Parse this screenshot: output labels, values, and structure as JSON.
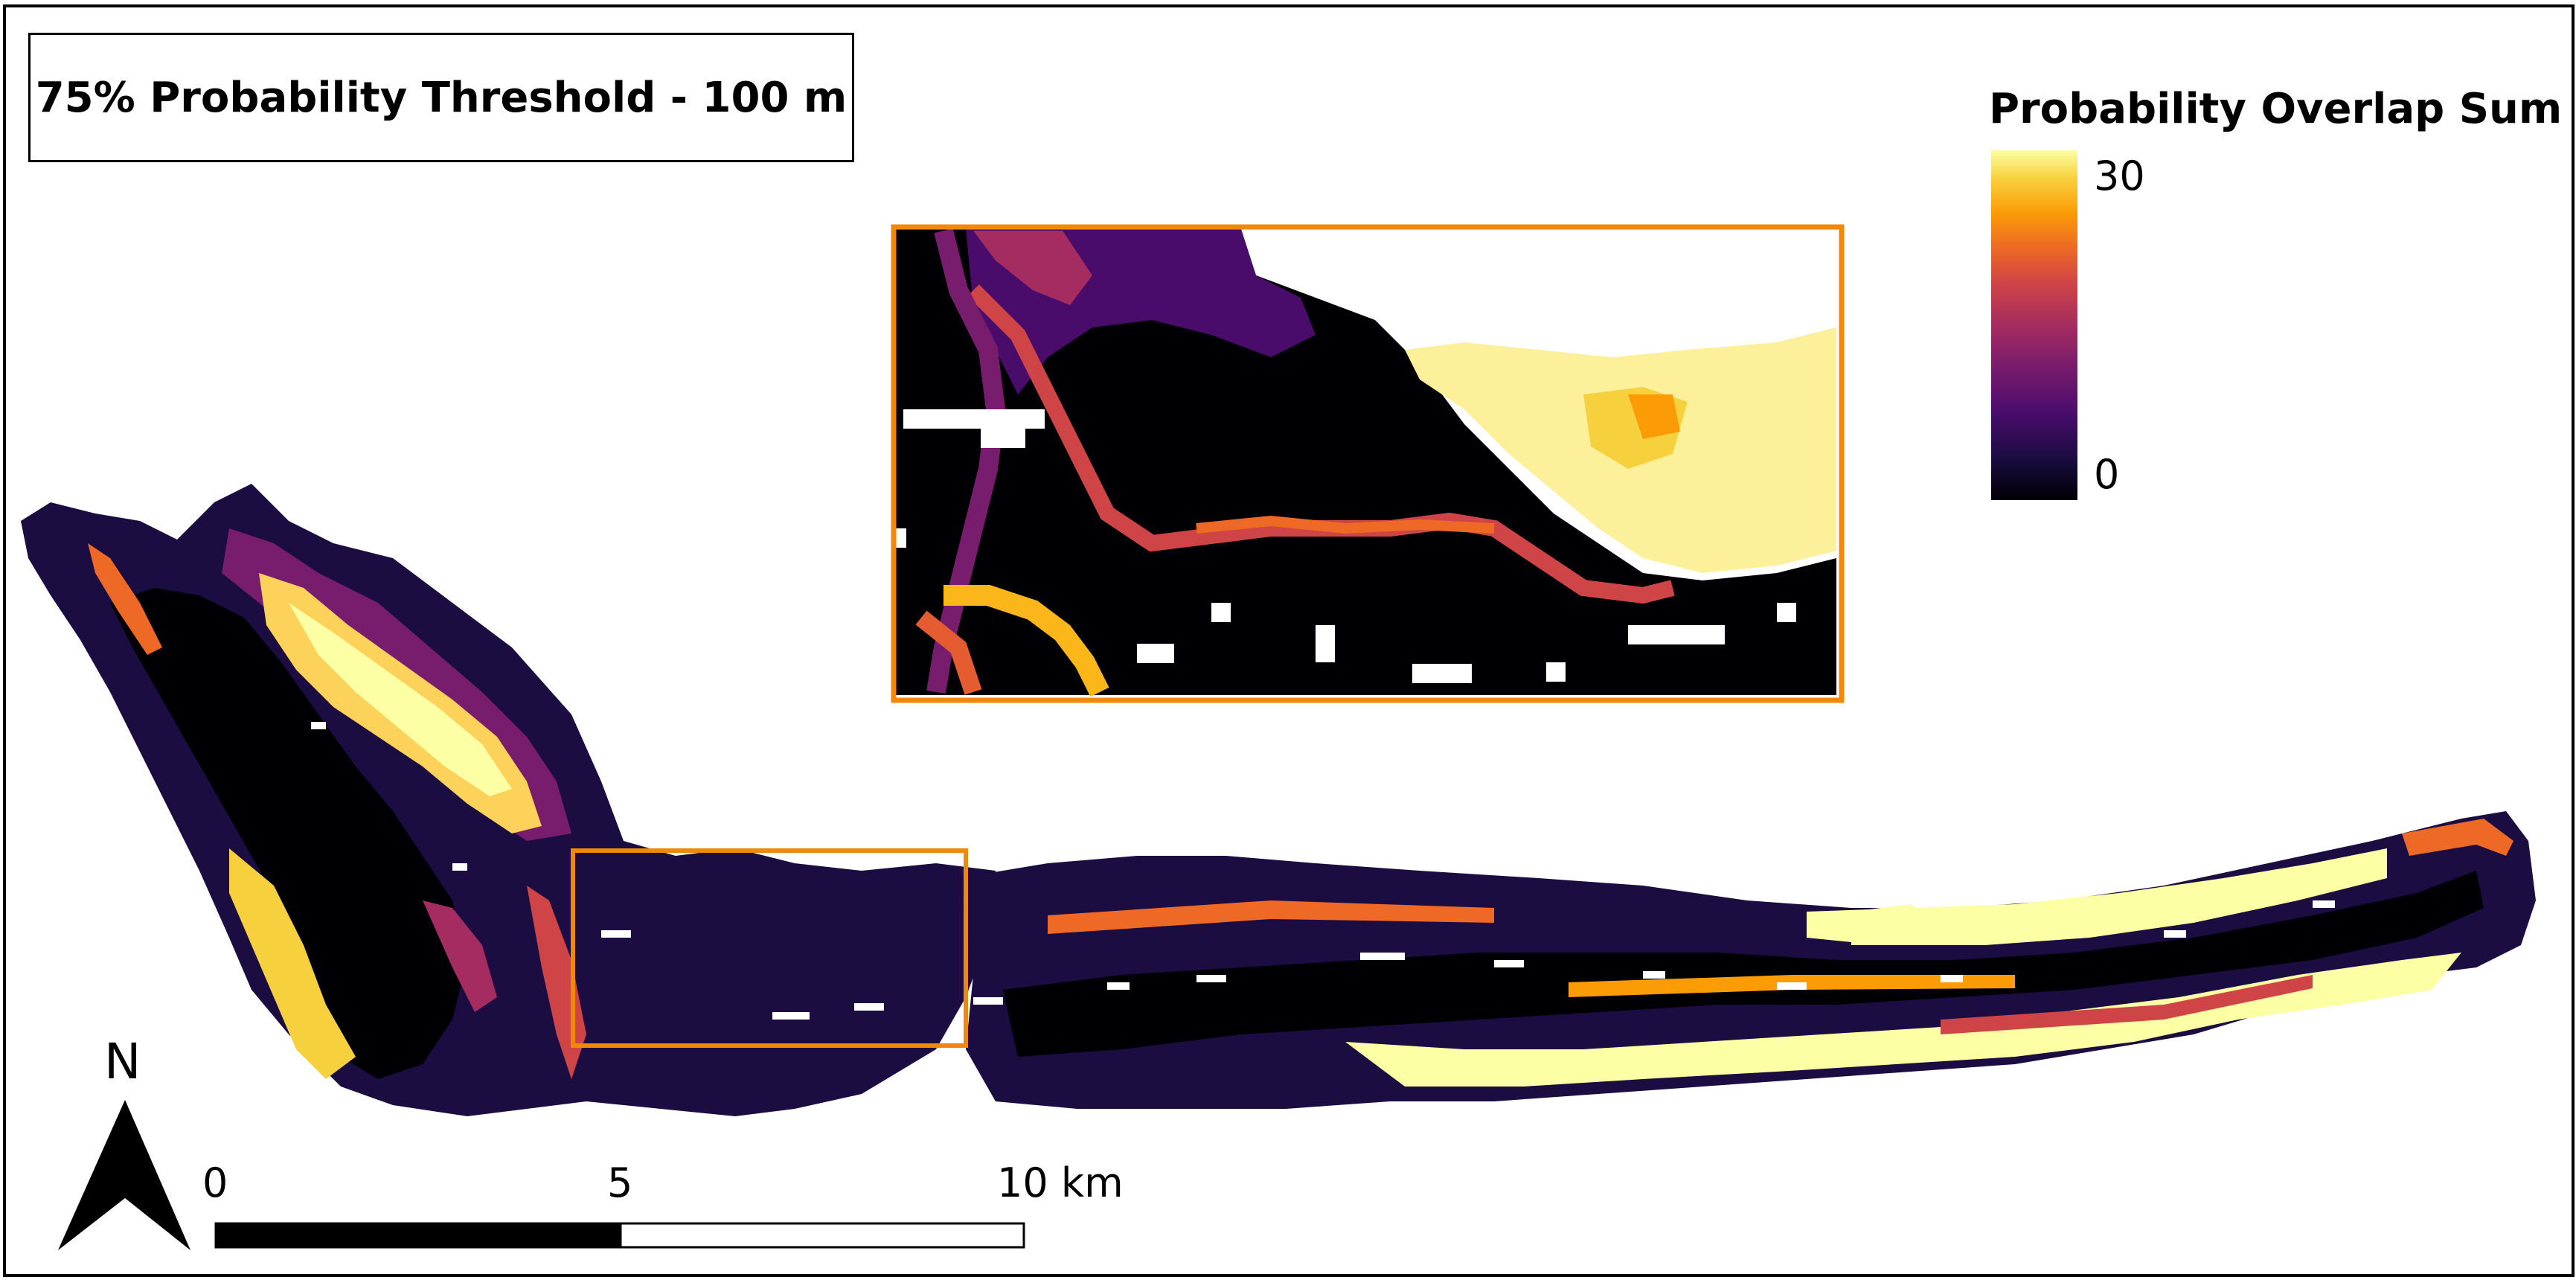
{
  "title": "75% Probability Threshold - 100 m",
  "legend": {
    "title": "Probability Overlap Sum",
    "max_label": "30",
    "min_label": "0",
    "colormap": [
      "#000004",
      "#1b0c41",
      "#4a0c6b",
      "#781c6d",
      "#a52c60",
      "#cf4446",
      "#ed6925",
      "#fb9b06",
      "#f7d13d",
      "#fcffa4"
    ]
  },
  "scale_bar": {
    "labels": [
      "0",
      "5",
      "10 km"
    ]
  },
  "north_arrow": {
    "label": "N"
  },
  "inset": {
    "frame_color": "#f0880c"
  }
}
